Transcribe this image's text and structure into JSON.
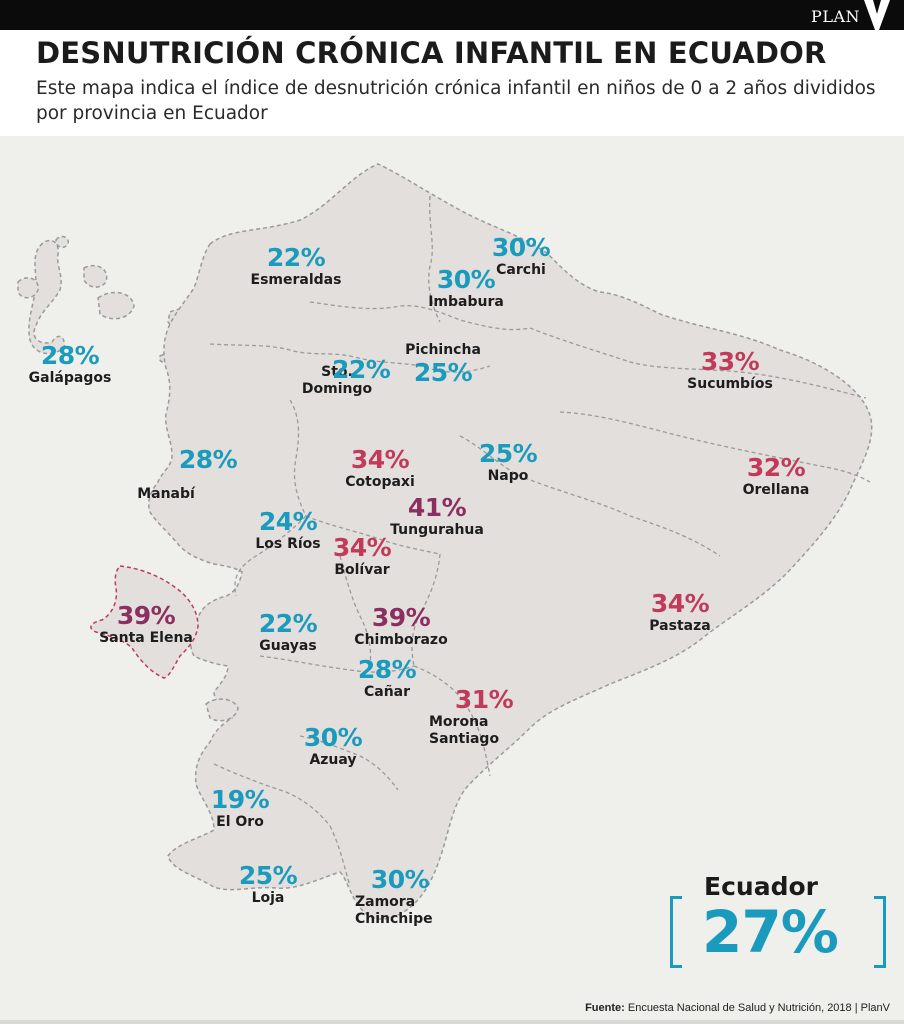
{
  "brand": "PLAN",
  "title": "DESNUTRICIÓN CRÓNICA INFANTIL EN ECUADOR",
  "subtitle": "Este mapa indica el índice de desnutrición crónica infantil en niños de 0 a 2 años divididos por provincia en Ecuador",
  "colors": {
    "low": "#1a9bbd",
    "high": "#c23a5a",
    "highest": "#8b2e60",
    "land": "#e2dfdc",
    "border": "#9a9a9a"
  },
  "provinces": [
    {
      "name": "Galápagos",
      "pct": "28%",
      "level": "teal"
    },
    {
      "name": "Esmeraldas",
      "pct": "22%",
      "level": "teal"
    },
    {
      "name": "Carchi",
      "pct": "30%",
      "level": "teal"
    },
    {
      "name": "Imbabura",
      "pct": "30%",
      "level": "teal"
    },
    {
      "name": "Pichincha",
      "pct": "25%",
      "level": "teal"
    },
    {
      "name": "Sto. Domingo",
      "pct": "22%",
      "level": "teal"
    },
    {
      "name": "Sucumbíos",
      "pct": "33%",
      "level": "crimson"
    },
    {
      "name": "Manabí",
      "pct": "28%",
      "level": "teal"
    },
    {
      "name": "Cotopaxi",
      "pct": "34%",
      "level": "crimson"
    },
    {
      "name": "Napo",
      "pct": "25%",
      "level": "teal"
    },
    {
      "name": "Orellana",
      "pct": "32%",
      "level": "crimson"
    },
    {
      "name": "Tungurahua",
      "pct": "41%",
      "level": "plum"
    },
    {
      "name": "Los Ríos",
      "pct": "24%",
      "level": "teal"
    },
    {
      "name": "Bolívar",
      "pct": "34%",
      "level": "crimson"
    },
    {
      "name": "Santa Elena",
      "pct": "39%",
      "level": "plum"
    },
    {
      "name": "Guayas",
      "pct": "22%",
      "level": "teal"
    },
    {
      "name": "Chimborazo",
      "pct": "39%",
      "level": "plum"
    },
    {
      "name": "Pastaza",
      "pct": "34%",
      "level": "crimson"
    },
    {
      "name": "Cañar",
      "pct": "28%",
      "level": "teal"
    },
    {
      "name": "Morona Santiago",
      "pct": "31%",
      "level": "crimson"
    },
    {
      "name": "Azuay",
      "pct": "30%",
      "level": "teal"
    },
    {
      "name": "El Oro",
      "pct": "19%",
      "level": "teal"
    },
    {
      "name": "Loja",
      "pct": "25%",
      "level": "teal"
    },
    {
      "name": "Zamora Chinchipe",
      "pct": "30%",
      "level": "teal"
    }
  ],
  "national": {
    "label": "Ecuador",
    "value": "27%"
  },
  "source": {
    "label": "Fuente:",
    "text": "Encuesta Nacional de Salud y Nutrición, 2018  |  PlanV"
  }
}
